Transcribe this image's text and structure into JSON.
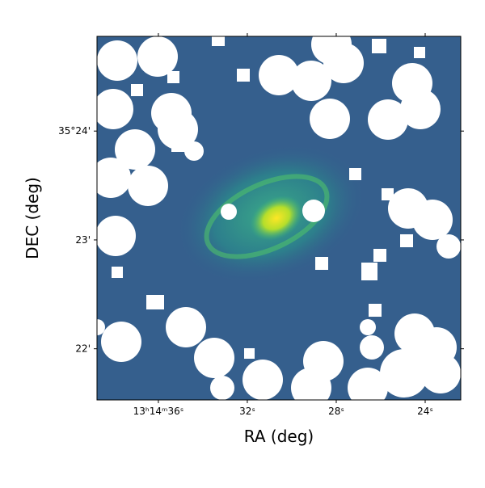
{
  "chart_data": {
    "type": "image",
    "xlabel": "RA (deg)",
    "ylabel": "DEC (deg)",
    "xlim": [
      38.76,
      22.4
    ],
    "xticks": [
      {
        "value": 36,
        "label": "13ʰ14ᵐ36ˢ"
      },
      {
        "value": 32,
        "label": "32ˢ"
      },
      {
        "value": 28,
        "label": "28ˢ"
      },
      {
        "value": 24,
        "label": "24ˢ"
      }
    ],
    "ylim": [
      21.53,
      24.87
    ],
    "yticks": [
      {
        "value": 24,
        "label": "35°24'"
      },
      {
        "value": 23,
        "label": "23'"
      },
      {
        "value": 22,
        "label": "22'"
      }
    ]
  }
}
